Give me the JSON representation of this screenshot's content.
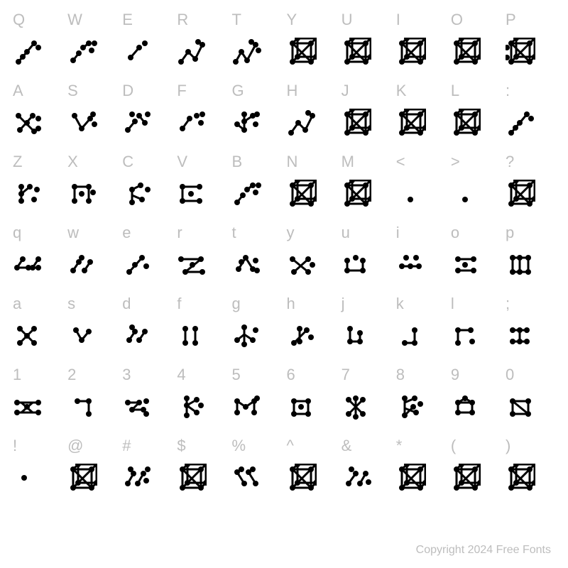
{
  "copyright": "Copyright 2024 Free Fonts",
  "label_color": "#bdbdbd",
  "label_fontsize": 22,
  "background_color": "#ffffff",
  "glyph_color": "#000000",
  "dot_radius": 4,
  "stroke_width": 3,
  "rows": [
    {
      "labels": [
        "Q",
        "W",
        "E",
        "R",
        "T",
        "Y",
        "U",
        "I",
        "O",
        "P"
      ],
      "glyphs": [
        "diag3",
        "scatter4",
        "diag2",
        "zigzag",
        "zigzag2",
        "cube",
        "cube",
        "cube",
        "cube",
        "cube2"
      ]
    },
    {
      "labels": [
        "A",
        "S",
        "D",
        "F",
        "G",
        "H",
        "J",
        "K",
        "L",
        ":"
      ],
      "glyphs": [
        "cross4",
        "vee3",
        "scatter5",
        "scatter4b",
        "tree4",
        "zigzag",
        "cube",
        "cube",
        "cube",
        "diag3"
      ]
    },
    {
      "labels": [
        "Z",
        "X",
        "C",
        "V",
        "B",
        "N",
        "M",
        "<",
        ">",
        "?"
      ],
      "glyphs": [
        "fork3",
        "grid4",
        "fork3b",
        "box4",
        "scatter4",
        "cube",
        "cube",
        "dot1",
        "dot1",
        "cube"
      ]
    },
    {
      "labels": [
        "q",
        "w",
        "e",
        "r",
        "t",
        "y",
        "u",
        "i",
        "o",
        "p"
      ],
      "glyphs": [
        "flat4",
        "dscatter",
        "diag2b",
        "zline",
        "triscatter",
        "xline",
        "box3",
        "flat3",
        "box3b",
        "grid5"
      ]
    },
    {
      "labels": [
        "a",
        "s",
        "d",
        "f",
        "g",
        "h",
        "j",
        "k",
        "l",
        ";"
      ],
      "glyphs": [
        "xshape",
        "vshort",
        "scatter3",
        "bar2",
        "tree3",
        "diagdot",
        "hook",
        "lshape",
        "corner",
        "box3c"
      ]
    },
    {
      "labels": [
        "1",
        "2",
        "3",
        "4",
        "5",
        "6",
        "7",
        "8",
        "9",
        "0"
      ],
      "glyphs": [
        "xflat",
        "rhook",
        "sshape",
        "ktree",
        "mbox",
        "boxd",
        "xk",
        "mtree",
        "boxtri",
        "boxc"
      ]
    },
    {
      "labels": [
        "!",
        "@",
        "#",
        "$",
        "%",
        "^",
        "&",
        "*",
        "(",
        ")"
      ],
      "glyphs": [
        "dot1b",
        "cube",
        "scatter5b",
        "cube",
        "scatter6",
        "cube",
        "scatter4c",
        "cube",
        "cube",
        "cube"
      ]
    }
  ]
}
